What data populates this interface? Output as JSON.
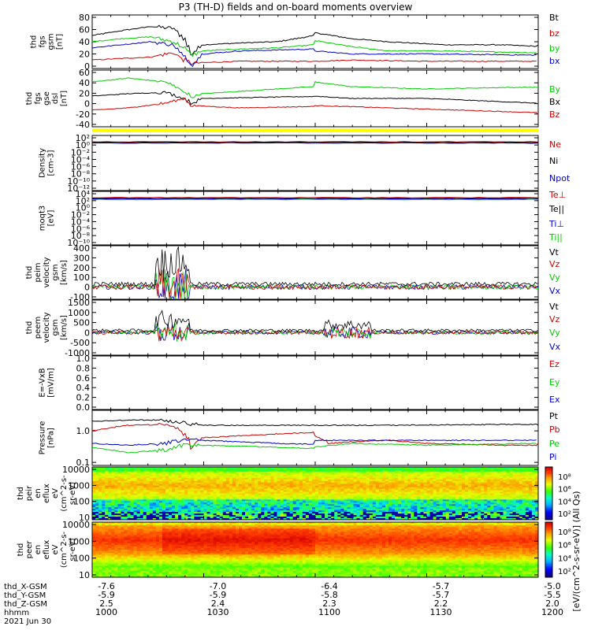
{
  "title": "P3 (TH-D) fields and on-board moments overview",
  "colors": {
    "black": "#000000",
    "red": "#cc0000",
    "green": "#00cc00",
    "blue": "#0000cc",
    "yellow": "#ffff00"
  },
  "chart_data": [
    {
      "type": "line",
      "ylabel": [
        "thd",
        "fgs",
        "gsm",
        "[nT]"
      ],
      "yticks": [
        "80",
        "60",
        "40",
        "20",
        "0"
      ],
      "ylim": [
        0,
        80
      ],
      "legend": [
        {
          "name": "Bt",
          "color": "black"
        },
        {
          "name": "bz",
          "color": "red"
        },
        {
          "name": "by",
          "color": "green"
        },
        {
          "name": "bx",
          "color": "blue"
        }
      ],
      "series": [
        {
          "name": "Bt",
          "color": "black",
          "values": [
            [
              1000,
              50
            ],
            [
              1008,
              58
            ],
            [
              1016,
              65
            ],
            [
              1022,
              62
            ],
            [
              1025,
              45
            ],
            [
              1027,
              20
            ],
            [
              1030,
              35
            ],
            [
              1040,
              38
            ],
            [
              1050,
              40
            ],
            [
              1060,
              50
            ],
            [
              1070,
              55
            ],
            [
              1080,
              60
            ],
            [
              1090,
              62
            ],
            [
              1094,
              70
            ],
            [
              1100,
              55
            ],
            [
              1110,
              45
            ],
            [
              1120,
              40
            ],
            [
              1135,
              35
            ],
            [
              1150,
              35
            ],
            [
              1170,
              30
            ],
            [
              1190,
              35
            ],
            [
              1200,
              35
            ]
          ]
        },
        {
          "name": "bz",
          "color": "red",
          "values": [
            [
              1000,
              10
            ],
            [
              1016,
              15
            ],
            [
              1022,
              22
            ],
            [
              1025,
              10
            ],
            [
              1027,
              5
            ],
            [
              1040,
              8
            ],
            [
              1060,
              8
            ],
            [
              1080,
              10
            ],
            [
              1094,
              15
            ],
            [
              1110,
              10
            ],
            [
              1130,
              8
            ],
            [
              1160,
              8
            ],
            [
              1200,
              10
            ]
          ]
        },
        {
          "name": "by",
          "color": "green",
          "values": [
            [
              1000,
              40
            ],
            [
              1008,
              45
            ],
            [
              1016,
              48
            ],
            [
              1022,
              40
            ],
            [
              1025,
              30
            ],
            [
              1027,
              18
            ],
            [
              1030,
              25
            ],
            [
              1040,
              28
            ],
            [
              1050,
              30
            ],
            [
              1060,
              35
            ],
            [
              1070,
              42
            ],
            [
              1080,
              48
            ],
            [
              1090,
              52
            ],
            [
              1094,
              58
            ],
            [
              1100,
              42
            ],
            [
              1110,
              32
            ],
            [
              1120,
              25
            ],
            [
              1135,
              25
            ],
            [
              1160,
              22
            ],
            [
              1200,
              28
            ]
          ]
        },
        {
          "name": "bx",
          "color": "blue",
          "values": [
            [
              1000,
              30
            ],
            [
              1008,
              35
            ],
            [
              1016,
              40
            ],
            [
              1022,
              35
            ],
            [
              1025,
              15
            ],
            [
              1027,
              2
            ],
            [
              1030,
              20
            ],
            [
              1040,
              25
            ],
            [
              1060,
              28
            ],
            [
              1080,
              30
            ],
            [
              1094,
              35
            ],
            [
              1100,
              25
            ],
            [
              1110,
              20
            ],
            [
              1130,
              20
            ],
            [
              1160,
              18
            ],
            [
              1200,
              22
            ]
          ]
        }
      ]
    },
    {
      "type": "line",
      "ylabel": [
        "thd",
        "fgs",
        "gse",
        "dsl",
        "[nT]"
      ],
      "yticks": [
        "60",
        "40",
        "20",
        "0",
        "-20",
        "-40"
      ],
      "ylim": [
        -50,
        60
      ],
      "legend": [
        {
          "name": "By",
          "color": "green"
        },
        {
          "name": "Bx",
          "color": "black"
        },
        {
          "name": "Bz",
          "color": "red"
        }
      ],
      "series": [
        {
          "name": "By",
          "color": "green",
          "values": [
            [
              1000,
              40
            ],
            [
              1010,
              48
            ],
            [
              1020,
              40
            ],
            [
              1025,
              20
            ],
            [
              1027,
              8
            ],
            [
              1030,
              15
            ],
            [
              1050,
              25
            ],
            [
              1070,
              35
            ],
            [
              1085,
              42
            ],
            [
              1094,
              55
            ],
            [
              1100,
              40
            ],
            [
              1110,
              30
            ],
            [
              1130,
              25
            ],
            [
              1150,
              28
            ],
            [
              1180,
              30
            ],
            [
              1200,
              28
            ]
          ]
        },
        {
          "name": "Bx",
          "color": "black",
          "values": [
            [
              1000,
              10
            ],
            [
              1010,
              15
            ],
            [
              1020,
              18
            ],
            [
              1025,
              5
            ],
            [
              1027,
              -5
            ],
            [
              1030,
              5
            ],
            [
              1050,
              8
            ],
            [
              1070,
              10
            ],
            [
              1090,
              18
            ],
            [
              1094,
              22
            ],
            [
              1100,
              10
            ],
            [
              1110,
              5
            ],
            [
              1130,
              5
            ],
            [
              1160,
              -5
            ],
            [
              1200,
              -5
            ]
          ]
        },
        {
          "name": "Bz",
          "color": "red",
          "values": [
            [
              1000,
              -20
            ],
            [
              1010,
              -15
            ],
            [
              1020,
              -5
            ],
            [
              1025,
              5
            ],
            [
              1027,
              -10
            ],
            [
              1040,
              -15
            ],
            [
              1060,
              -12
            ],
            [
              1080,
              -8
            ],
            [
              1100,
              -10
            ],
            [
              1120,
              -15
            ],
            [
              1140,
              -20
            ],
            [
              1160,
              -25
            ],
            [
              1180,
              -28
            ],
            [
              1200,
              -30
            ]
          ]
        }
      ]
    },
    {
      "type": "log_line",
      "ylabel": [
        "Density",
        "[cm-3]"
      ],
      "yticks": [
        "10²",
        "10⁰",
        "10⁻²",
        "10⁻⁴",
        "10⁻⁶",
        "10⁻⁸",
        "10⁻¹⁰",
        "10⁻¹²"
      ],
      "legend": [
        {
          "name": "Ne",
          "color": "red"
        },
        {
          "name": "Ni",
          "color": "black"
        },
        {
          "name": "Npot",
          "color": "blue"
        }
      ]
    },
    {
      "type": "log_line",
      "ylabel": [
        "moqt3",
        "[eV]"
      ],
      "yticks": [
        "10⁴",
        "10²",
        "10⁰",
        "10⁻²",
        "10⁻⁴",
        "10⁻⁶",
        "10⁻⁸",
        "10⁻¹⁰"
      ],
      "legend": [
        {
          "name": "Te⊥",
          "color": "red"
        },
        {
          "name": "Te||",
          "color": "black"
        },
        {
          "name": "Ti⊥",
          "color": "blue"
        },
        {
          "name": "Ti||",
          "color": "green"
        }
      ]
    },
    {
      "type": "line",
      "ylabel": [
        "thd",
        "peim",
        "velocity",
        "gsm",
        "[km/s]"
      ],
      "yticks": [
        "400",
        "300",
        "200",
        "100",
        "0",
        "-100"
      ],
      "ylim": [
        -100,
        400
      ],
      "legend": [
        {
          "name": "Vt",
          "color": "black"
        },
        {
          "name": "Vz",
          "color": "red"
        },
        {
          "name": "Vy",
          "color": "green"
        },
        {
          "name": "Vx",
          "color": "blue"
        }
      ]
    },
    {
      "type": "line",
      "ylabel": [
        "thd",
        "peem",
        "velocity",
        "gsm",
        "[km/s]"
      ],
      "yticks": [
        "1500",
        "1000",
        "500",
        "0",
        "-500",
        "-1000"
      ],
      "ylim": [
        -1000,
        1500
      ],
      "legend": [
        {
          "name": "Vt",
          "color": "black"
        },
        {
          "name": "Vz",
          "color": "red"
        },
        {
          "name": "Vy",
          "color": "green"
        },
        {
          "name": "Vx",
          "color": "blue"
        }
      ]
    },
    {
      "type": "line",
      "ylabel": [
        "E=-VxB",
        "[mV/m]"
      ],
      "yticks": [
        "1.0",
        "0.8",
        "0.6",
        "0.4",
        "0.2",
        "0.0"
      ],
      "ylim": [
        0,
        1
      ],
      "legend": [
        {
          "name": "Ez",
          "color": "red"
        },
        {
          "name": "Ey",
          "color": "green"
        },
        {
          "name": "Ex",
          "color": "blue"
        }
      ]
    },
    {
      "type": "log_line",
      "ylabel": [
        "Pressure",
        "[nPa]"
      ],
      "yticks": [
        "1.0",
        "0.1"
      ],
      "legend": [
        {
          "name": "Pt",
          "color": "black"
        },
        {
          "name": "Pb",
          "color": "red"
        },
        {
          "name": "Pe",
          "color": "green"
        },
        {
          "name": "Pi",
          "color": "blue"
        }
      ],
      "series": [
        {
          "name": "Pt",
          "color": "black",
          "values": [
            [
              1000,
              2.0
            ],
            [
              1010,
              2.2
            ],
            [
              1020,
              2.2
            ],
            [
              1025,
              1.8
            ],
            [
              1030,
              1.5
            ],
            [
              1050,
              1.5
            ],
            [
              1070,
              1.5
            ],
            [
              1090,
              1.6
            ],
            [
              1100,
              1.5
            ],
            [
              1120,
              1.5
            ],
            [
              1150,
              1.6
            ],
            [
              1180,
              1.6
            ],
            [
              1200,
              1.5
            ]
          ]
        },
        {
          "name": "Pb",
          "color": "red",
          "values": [
            [
              1000,
              1.0
            ],
            [
              1010,
              1.5
            ],
            [
              1020,
              1.6
            ],
            [
              1025,
              0.8
            ],
            [
              1027,
              0.3
            ],
            [
              1030,
              0.6
            ],
            [
              1050,
              0.8
            ],
            [
              1070,
              1.0
            ],
            [
              1090,
              1.1
            ],
            [
              1100,
              0.7
            ],
            [
              1104,
              0.4
            ],
            [
              1110,
              0.45
            ],
            [
              1120,
              0.5
            ],
            [
              1130,
              0.4
            ],
            [
              1150,
              0.35
            ],
            [
              1170,
              0.35
            ],
            [
              1200,
              0.4
            ]
          ]
        },
        {
          "name": "Pe",
          "color": "green",
          "values": [
            [
              1000,
              0.3
            ],
            [
              1010,
              0.2
            ],
            [
              1020,
              0.25
            ],
            [
              1025,
              0.35
            ],
            [
              1030,
              0.35
            ],
            [
              1050,
              0.3
            ],
            [
              1070,
              0.25
            ],
            [
              1090,
              0.12
            ],
            [
              1095,
              0.1
            ],
            [
              1100,
              0.3
            ],
            [
              1110,
              0.4
            ],
            [
              1130,
              0.35
            ],
            [
              1160,
              0.4
            ],
            [
              1200,
              0.4
            ]
          ]
        },
        {
          "name": "Pi",
          "color": "blue",
          "values": [
            [
              1000,
              0.4
            ],
            [
              1010,
              0.35
            ],
            [
              1020,
              0.4
            ],
            [
              1025,
              0.5
            ],
            [
              1030,
              0.5
            ],
            [
              1050,
              0.4
            ],
            [
              1070,
              0.35
            ],
            [
              1090,
              0.2
            ],
            [
              1095,
              0.15
            ],
            [
              1100,
              0.5
            ],
            [
              1110,
              0.5
            ],
            [
              1130,
              0.5
            ],
            [
              1160,
              0.5
            ],
            [
              1200,
              0.5
            ]
          ]
        }
      ]
    },
    {
      "type": "heatmap",
      "ylabel": [
        "thd",
        "peir",
        "en",
        "eflux",
        "eV",
        "(cm^2-s-",
        "sr-eV)"
      ],
      "yticks": [
        "10000",
        "1000",
        "100",
        "10"
      ],
      "colorbar_ticks": [
        "10⁸",
        "10⁶",
        "10⁴",
        "10²"
      ]
    },
    {
      "type": "heatmap",
      "ylabel": [
        "thd",
        "peer",
        "en",
        "eflux",
        "eV",
        "(cm^2-s-",
        "sr-eV)"
      ],
      "yticks": [
        "10000",
        "1000",
        "100",
        "10"
      ],
      "colorbar_ticks": [
        "10⁸",
        "10⁶",
        "10⁴",
        "10²"
      ]
    }
  ],
  "colorbar_label": "[eV/(cm^2-s-sr-eV)] (All Qs)",
  "x_axis": {
    "ticks": [
      {
        "x": 1000,
        "gsm_x": "-7.6",
        "gsm_y": "-5.9",
        "gsm_z": "2.5",
        "hhmm": "1000"
      },
      {
        "x": 1030,
        "gsm_x": "-7.0",
        "gsm_y": "-5.9",
        "gsm_z": "2.4",
        "hhmm": "1030"
      },
      {
        "x": 1100,
        "gsm_x": "-6.4",
        "gsm_y": "-5.8",
        "gsm_z": "2.3",
        "hhmm": "1100"
      },
      {
        "x": 1130,
        "gsm_x": "-5.7",
        "gsm_y": "-5.7",
        "gsm_z": "2.2",
        "hhmm": "1130"
      },
      {
        "x": 1200,
        "gsm_x": "-5.0",
        "gsm_y": "-5.5",
        "gsm_z": "2.0",
        "hhmm": "1200"
      }
    ],
    "row_labels": [
      "thd_X-GSM",
      "thd_Y-GSM",
      "thd_Z-GSM",
      "hhmm"
    ],
    "date": "2021 Jun 30"
  }
}
